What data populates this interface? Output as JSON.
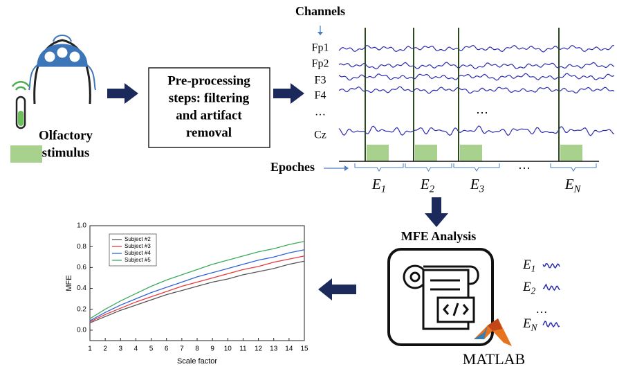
{
  "stimulus": {
    "lines": [
      "Olfactory",
      "stimulus"
    ]
  },
  "preprocessing": {
    "lines": [
      "Pre-processing",
      "steps: filtering",
      "and artifact",
      "removal"
    ]
  },
  "channels": {
    "title": "Channels",
    "labels": [
      "Fp1",
      "Fp2",
      "F3",
      "F4",
      "…",
      "Cz"
    ],
    "ellipsis": "…"
  },
  "epochs": {
    "title": "Epoches",
    "labels": [
      {
        "letter": "E",
        "sub": "1"
      },
      {
        "letter": "E",
        "sub": "2"
      },
      {
        "letter": "E",
        "sub": "3"
      },
      {
        "letter": "E",
        "sub": "N"
      }
    ],
    "ellipsis": "…"
  },
  "mfe_panel": {
    "title": "MFE Analysis",
    "software": "MATLAB",
    "labels": [
      {
        "letter": "E",
        "sub": "1"
      },
      {
        "letter": "E",
        "sub": "2"
      },
      {
        "letter": "E",
        "sub": "N"
      }
    ],
    "ellipsis": "…"
  },
  "chart_data": {
    "type": "line",
    "xlabel": "Scale factor",
    "ylabel": "MFE",
    "x": [
      1,
      2,
      3,
      4,
      5,
      6,
      7,
      8,
      9,
      10,
      11,
      12,
      13,
      14,
      15
    ],
    "series": [
      {
        "name": "Subject #2",
        "color": "#555555",
        "values": [
          0.07,
          0.13,
          0.19,
          0.24,
          0.29,
          0.34,
          0.38,
          0.42,
          0.46,
          0.49,
          0.53,
          0.56,
          0.59,
          0.63,
          0.66
        ]
      },
      {
        "name": "Subject #3",
        "color": "#e8393c",
        "values": [
          0.08,
          0.15,
          0.21,
          0.27,
          0.32,
          0.37,
          0.42,
          0.46,
          0.5,
          0.54,
          0.58,
          0.61,
          0.65,
          0.68,
          0.71
        ]
      },
      {
        "name": "Subject #4",
        "color": "#2f62d8",
        "values": [
          0.09,
          0.17,
          0.24,
          0.3,
          0.36,
          0.41,
          0.46,
          0.51,
          0.55,
          0.59,
          0.63,
          0.67,
          0.7,
          0.74,
          0.77
        ]
      },
      {
        "name": "Subject #5",
        "color": "#3caa5c",
        "values": [
          0.11,
          0.2,
          0.28,
          0.35,
          0.42,
          0.48,
          0.53,
          0.58,
          0.63,
          0.67,
          0.71,
          0.75,
          0.78,
          0.82,
          0.85
        ]
      }
    ],
    "xlim": [
      1,
      15
    ],
    "ylim": [
      -0.1,
      1.0
    ],
    "xticks": [
      1,
      2,
      3,
      4,
      5,
      6,
      7,
      8,
      9,
      10,
      11,
      12,
      13,
      14,
      15
    ],
    "yticks": [
      {
        "value": 0,
        "label": "0.0"
      },
      0.2,
      0.4,
      0.6,
      0.8,
      {
        "value": 1,
        "label": "1.0"
      }
    ],
    "legend": "upper left",
    "grid": false
  }
}
